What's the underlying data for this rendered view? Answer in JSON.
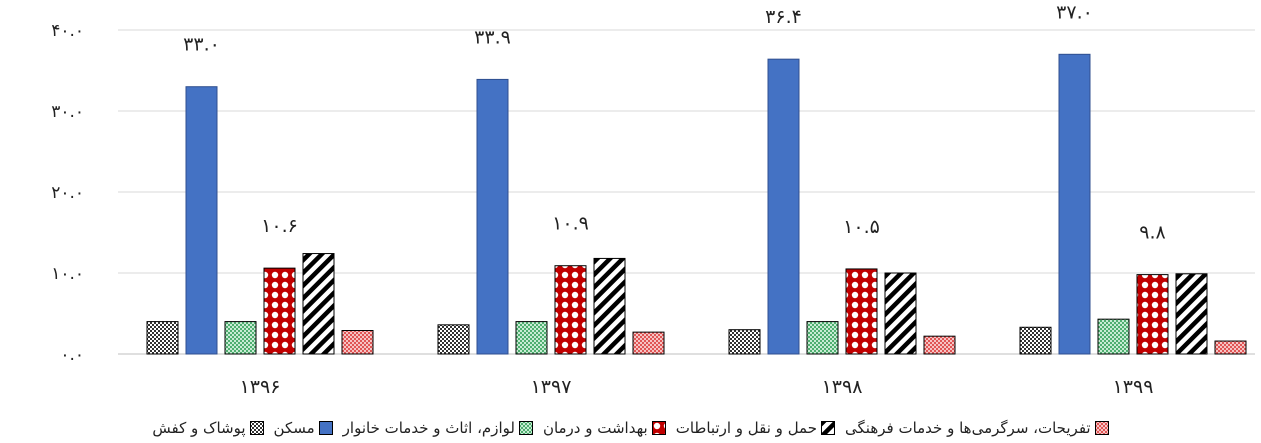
{
  "chart_data": {
    "type": "bar",
    "categories": [
      "۱۳۹۶",
      "۱۳۹۷",
      "۱۳۹۸",
      "۱۳۹۹"
    ],
    "series": [
      {
        "name": "پوشاک و کفش",
        "values": [
          4.0,
          3.6,
          3.0,
          3.3
        ],
        "color": "#444444",
        "pattern": "checker-dark"
      },
      {
        "name": "مسکن",
        "values": [
          33.0,
          33.9,
          36.4,
          37.0
        ],
        "color": "#4472C4",
        "pattern": "solid"
      },
      {
        "name": "لوازم، اثاث و خدمات خانوار",
        "values": [
          4.0,
          4.0,
          4.0,
          4.3
        ],
        "color": "#70C08C",
        "pattern": "checker-green"
      },
      {
        "name": "بهداشت و درمان",
        "values": [
          10.6,
          10.9,
          10.5,
          9.8
        ],
        "color": "#C00000",
        "pattern": "dots-red"
      },
      {
        "name": "حمل و نقل و ارتباطات",
        "values": [
          12.4,
          11.8,
          10.0,
          9.9
        ],
        "color": "#000000",
        "pattern": "diagonal"
      },
      {
        "name": "تفریحات، سرگرمی‌ها و خدمات فرهنگی",
        "values": [
          2.9,
          2.7,
          2.2,
          1.6
        ],
        "color": "#E06060",
        "pattern": "checker-pink"
      }
    ],
    "data_labels": [
      {
        "series": "مسکن",
        "labels": [
          "۳۳.۰",
          "۳۳.۹",
          "۳۶.۴",
          "۳۷.۰"
        ]
      },
      {
        "series": "بهداشت و درمان",
        "labels": [
          "۱۰.۶",
          "۱۰.۹",
          "۱۰.۵",
          "۹.۸"
        ]
      }
    ],
    "y_ticks": [
      "۰.۰",
      "۱۰.۰",
      "۲۰.۰",
      "۳۰.۰",
      "۴۰.۰"
    ],
    "ylim": [
      0,
      40
    ],
    "grid": true,
    "legend_position": "bottom",
    "title": "",
    "xlabel": "",
    "ylabel": ""
  }
}
